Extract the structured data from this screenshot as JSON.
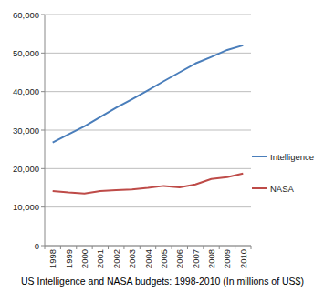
{
  "chart_data": {
    "type": "line",
    "title": "US Intelligence and NASA budgets: 1998-2010 (In millions of US$)",
    "categories": [
      "1998",
      "1999",
      "2000",
      "2001",
      "2002",
      "2003",
      "2004",
      "2005",
      "2006",
      "2007",
      "2008",
      "2009",
      "2010"
    ],
    "series": [
      {
        "name": "Intelligence",
        "color": "#4a7ebb",
        "values": [
          26800,
          28900,
          31000,
          33400,
          35800,
          38000,
          40300,
          42700,
          45000,
          47300,
          49000,
          50800,
          52000
        ]
      },
      {
        "name": "NASA",
        "color": "#be4b48",
        "values": [
          14200,
          13800,
          13500,
          14200,
          14400,
          14600,
          15000,
          15500,
          15100,
          15900,
          17300,
          17800,
          18700
        ]
      }
    ],
    "ylim": [
      0,
      60000
    ],
    "yticks": [
      0,
      {
        "value": 10000,
        "label": "10,000"
      },
      {
        "value": 20000,
        "label": "20,000"
      },
      {
        "value": 30000,
        "label": "30,000"
      },
      {
        "value": 40000,
        "label": "40,000"
      },
      {
        "value": 50000,
        "label": "50,000"
      },
      {
        "value": 60000,
        "label": "60,000"
      }
    ],
    "grid": true,
    "legend": "right"
  }
}
